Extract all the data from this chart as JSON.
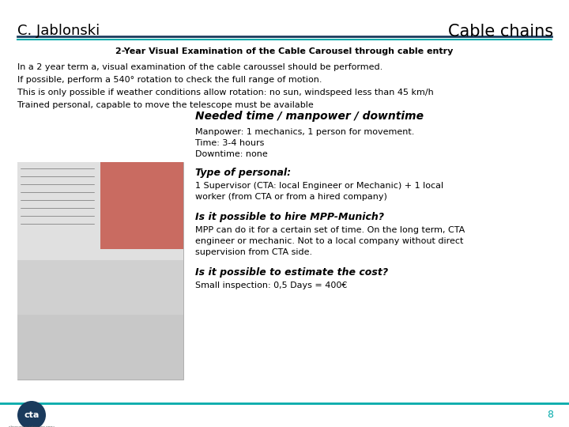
{
  "title_left": "C. Jablonski",
  "title_right": "Cable chains",
  "header_line_color1": "#1a3a5c",
  "header_line_color2": "#00aaaa",
  "section_title": "2-Year Visual Examination of the Cable Carousel through cable entry",
  "intro_lines": [
    "In a 2 year term a, visual examination of the cable caroussel should be performed.",
    "If possible, perform a 540° rotation to check the full range of motion.",
    "This is only possible if weather conditions allow rotation: no sun, windspeed less than 45 km/h",
    "Trained personal, capable to move the telescope must be available"
  ],
  "needed_title": "Needed time / manpower / downtime",
  "needed_lines": [
    "Manpower: 1 mechanics, 1 person for movement.",
    "Time: 3-4 hours",
    "Downtime: none"
  ],
  "type_title": "Type of personal:",
  "type_lines": [
    "1 Supervisor (CTA: local Engineer or Mechanic) + 1 local",
    "worker (from CTA or from a hired company)"
  ],
  "hire_title": "Is it possible to hire MPP-Munich?",
  "hire_lines": [
    "MPP can do it for a certain set of time. On the long term, CTA",
    "engineer or mechanic. Not to a local company without direct",
    "supervision from CTA side."
  ],
  "cost_title": "Is it possible to estimate the cost?",
  "cost_lines": [
    "Small inspection: 0,5 Days = 400€"
  ],
  "page_number": "8",
  "bg_color": "#ffffff",
  "text_color": "#000000",
  "footer_line_color": "#00aaaa",
  "footer_page_color": "#00aaaa",
  "cta_bg": "#1a3a5c",
  "img_placeholder_color": "#cccccc"
}
